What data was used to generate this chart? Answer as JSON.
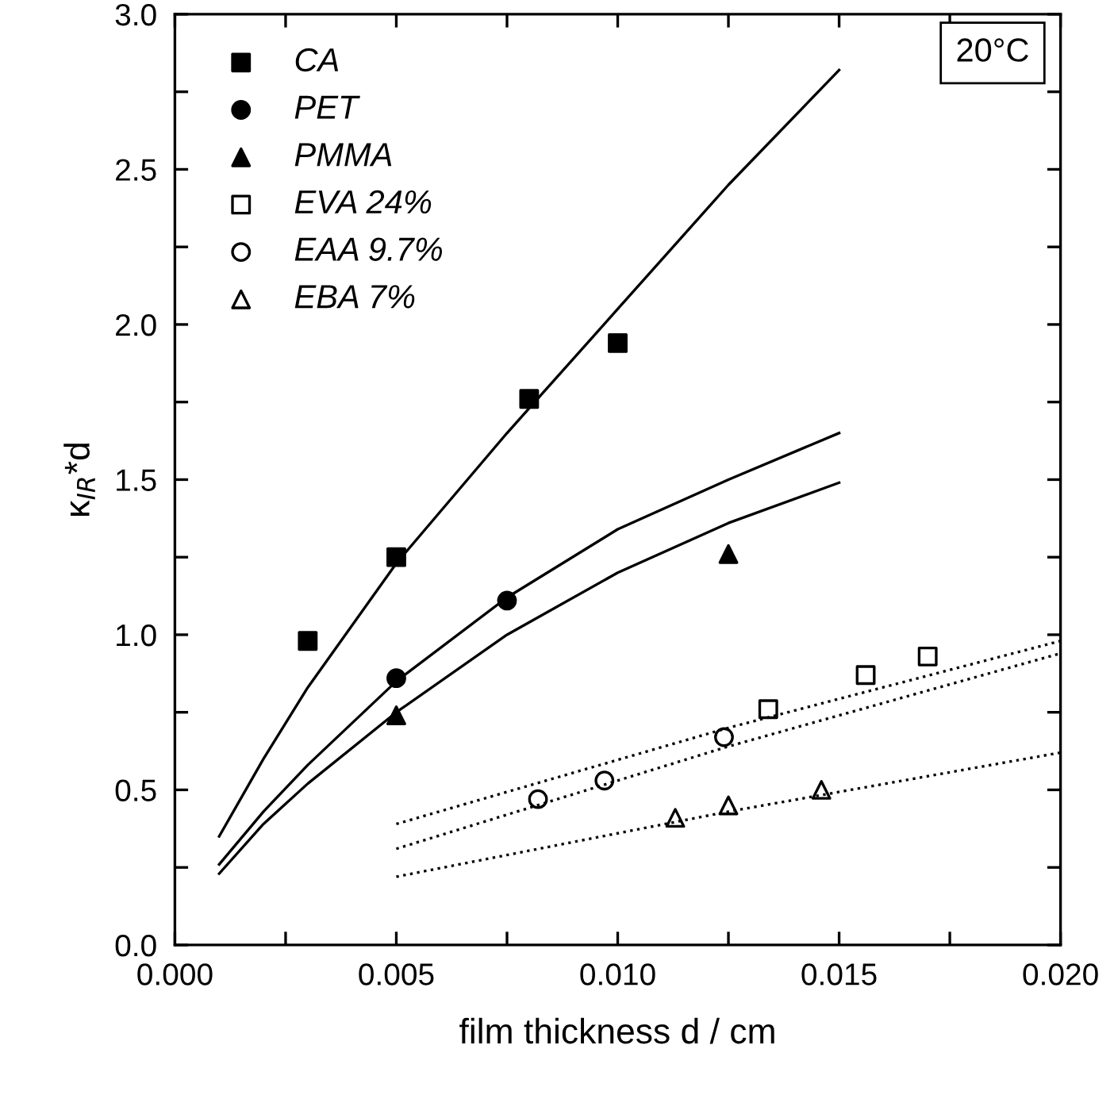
{
  "chart_data": {
    "type": "scatter",
    "xlabel": "film thickness d / cm",
    "ylabel": "κ$_{IR}$*d",
    "annotations": [
      "20°C"
    ],
    "xlim": [
      0.0,
      0.02
    ],
    "ylim": [
      0.0,
      3.0
    ],
    "xticks": [
      {
        "value": 0.0,
        "label": "0.000"
      },
      {
        "value": 0.0025,
        "label": null
      },
      {
        "value": 0.005,
        "label": "0.005"
      },
      {
        "value": 0.0075,
        "label": null
      },
      {
        "value": 0.01,
        "label": "0.010"
      },
      {
        "value": 0.0125,
        "label": null
      },
      {
        "value": 0.015,
        "label": "0.015"
      },
      {
        "value": 0.0175,
        "label": null
      },
      {
        "value": 0.02,
        "label": "0.020"
      }
    ],
    "yticks": [
      {
        "value": 0.0,
        "label": "0.0"
      },
      {
        "value": 0.25,
        "label": null
      },
      {
        "value": 0.5,
        "label": "0.5"
      },
      {
        "value": 0.75,
        "label": null
      },
      {
        "value": 1.0,
        "label": "1.0"
      },
      {
        "value": 1.25,
        "label": null
      },
      {
        "value": 1.5,
        "label": "1.5"
      },
      {
        "value": 1.75,
        "label": null
      },
      {
        "value": 2.0,
        "label": "2.0"
      },
      {
        "value": 2.25,
        "label": null
      },
      {
        "value": 2.5,
        "label": "2.5"
      },
      {
        "value": 2.75,
        "label": null
      },
      {
        "value": 3.0,
        "label": "3.0"
      }
    ],
    "grid": false,
    "legend": "top left",
    "series": [
      {
        "name": "CA",
        "marker": "square",
        "color": "#000000",
        "x": [
          0.003,
          0.005,
          0.008,
          0.01
        ],
        "values": [
          0.98,
          1.25,
          1.76,
          1.94
        ]
      },
      {
        "name": "PET",
        "marker": "circle",
        "color": "#000000",
        "x": [
          0.005,
          0.0075
        ],
        "values": [
          0.86,
          1.11
        ]
      },
      {
        "name": "PMMA",
        "marker": "triangle",
        "color": "#000000",
        "x": [
          0.005,
          0.0125
        ],
        "values": [
          0.74,
          1.26
        ]
      },
      {
        "name": "EVA 24%",
        "marker": "square",
        "color": "#000000",
        "x": [
          0.0134,
          0.0156,
          0.017
        ],
        "values": [
          0.76,
          0.87,
          0.93
        ]
      },
      {
        "name": "EAA 9.7%",
        "marker": "circle",
        "color": "#000000",
        "x": [
          0.0082,
          0.0097,
          0.0124
        ],
        "values": [
          0.47,
          0.53,
          0.67
        ]
      },
      {
        "name": "EBA 7%",
        "marker": "triangle",
        "color": "#000000",
        "x": [
          0.0113,
          0.0125,
          0.0146
        ],
        "values": [
          0.41,
          0.45,
          0.5
        ]
      },
      {
        "type": "line",
        "line_style": "solid",
        "color": "#000000",
        "x": [
          0.001,
          0.002,
          0.003,
          0.005,
          0.0075,
          0.01,
          0.0125,
          0.015
        ],
        "values": [
          0.35,
          0.6,
          0.83,
          1.23,
          1.65,
          2.05,
          2.45,
          2.82
        ]
      },
      {
        "type": "line",
        "line_style": "solid",
        "color": "#000000",
        "x": [
          0.001,
          0.002,
          0.003,
          0.005,
          0.0075,
          0.01,
          0.0125,
          0.015
        ],
        "values": [
          0.26,
          0.43,
          0.58,
          0.85,
          1.12,
          1.34,
          1.5,
          1.65
        ]
      },
      {
        "type": "line",
        "line_style": "solid",
        "color": "#000000",
        "x": [
          0.001,
          0.002,
          0.003,
          0.005,
          0.0075,
          0.01,
          0.0125,
          0.015
        ],
        "values": [
          0.23,
          0.39,
          0.52,
          0.75,
          1.0,
          1.2,
          1.36,
          1.49
        ]
      },
      {
        "type": "line",
        "line_style": "dotted",
        "color": "#000000",
        "x": [
          0.005,
          0.0125,
          0.02
        ],
        "values": [
          0.39,
          0.7,
          0.98
        ]
      },
      {
        "type": "line",
        "line_style": "dotted",
        "color": "#000000",
        "x": [
          0.005,
          0.0125,
          0.02
        ],
        "values": [
          0.31,
          0.64,
          0.94
        ]
      },
      {
        "type": "line",
        "line_style": "dotted",
        "color": "#000000",
        "x": [
          0.005,
          0.0125,
          0.02
        ],
        "values": [
          0.22,
          0.43,
          0.62
        ]
      }
    ]
  }
}
